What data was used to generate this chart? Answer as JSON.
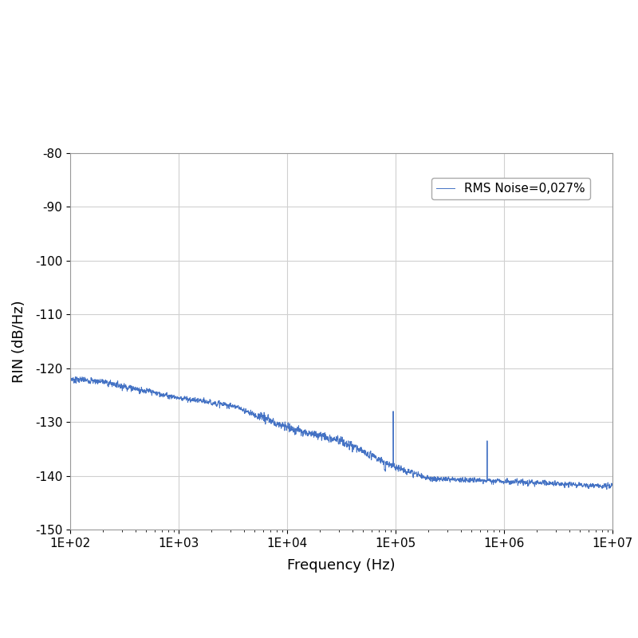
{
  "title": "",
  "xlabel": "Frequency (Hz)",
  "ylabel": "RIN (dB/Hz)",
  "line_color": "#4472C4",
  "legend_label": "RMS Noise=0,027%",
  "xlim": [
    100,
    10000000.0
  ],
  "ylim": [
    -150,
    -80
  ],
  "yticks": [
    -150,
    -140,
    -130,
    -120,
    -110,
    -100,
    -90,
    -80
  ],
  "background_color": "#ffffff",
  "grid_color": "#d0d0d0",
  "spike1_freq": 95000,
  "spike2_freq": 700000
}
